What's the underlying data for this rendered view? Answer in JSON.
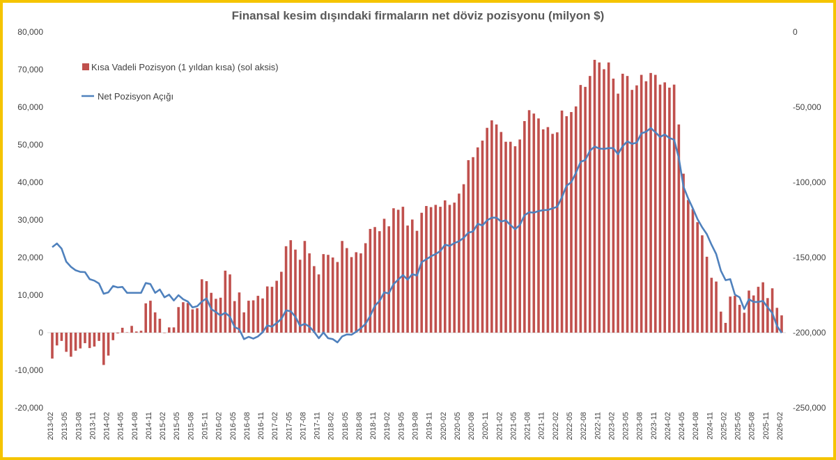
{
  "chart_data": {
    "type": "bar+line",
    "title": "Finansal kesim dışındaki firmaların net döviz pozisyonu (milyon $)",
    "start_month": "2013-02",
    "end_month": "2026-02",
    "frequency": "monthly",
    "left_axis": {
      "ylim": [
        -20000,
        80000
      ],
      "ticks": [
        "80,000",
        "70,000",
        "60,000",
        "50,000",
        "40,000",
        "30,000",
        "20,000",
        "10,000",
        "0",
        "-10,000",
        "-20,000"
      ]
    },
    "right_axis": {
      "ylim": [
        -250000,
        0
      ],
      "ticks": [
        "0",
        "-50,000",
        "-100,000",
        "-150,000",
        "-200,000",
        "-250,000"
      ]
    },
    "x_tick_labels": [
      "2013-02",
      "2013-05",
      "2013-08",
      "2013-11",
      "2014-02",
      "2014-05",
      "2014-08",
      "2014-11",
      "2015-02",
      "2015-05",
      "2015-08",
      "2015-11",
      "2016-02",
      "2016-05",
      "2016-08",
      "2016-11",
      "2017-02",
      "2017-05",
      "2017-08",
      "2017-11",
      "2018-02",
      "2018-05",
      "2018-08",
      "2018-11",
      "2019-02",
      "2019-05",
      "2019-08",
      "2019-11",
      "2020-02",
      "2020-05",
      "2020-08",
      "2020-11",
      "2021-02",
      "2021-05",
      "2021-08",
      "2021-11",
      "2022-02",
      "2022-05",
      "2022-08",
      "2022-11",
      "2023-02",
      "2023-05",
      "2023-08",
      "2023-11",
      "2024-02",
      "2024-05",
      "2024-08",
      "2024-11",
      "2025-02",
      "2025-05",
      "2025-08",
      "2025-11",
      "2026-02"
    ],
    "legend_position": "top-left",
    "grid": false,
    "series": [
      {
        "name": "Kısa Vadeli Pozisyon (1 yıldan kısa) (sol aksis)",
        "type": "bar",
        "axis": "left",
        "color": "#C0504D",
        "values": [
          -6900,
          -3400,
          -2200,
          -5100,
          -6400,
          -4800,
          -4200,
          -2800,
          -4100,
          -3700,
          -2200,
          -8600,
          -6100,
          -2000,
          -200,
          1300,
          100,
          1800,
          300,
          500,
          7800,
          8500,
          5400,
          3700,
          -100,
          1400,
          1400,
          6800,
          8100,
          7900,
          6200,
          6500,
          14200,
          13700,
          10600,
          9000,
          9300,
          16500,
          15500,
          8400,
          10700,
          5400,
          8500,
          8600,
          9800,
          9100,
          12300,
          12200,
          13800,
          16200,
          23000,
          24600,
          22100,
          19400,
          24400,
          21100,
          17700,
          15500,
          20900,
          20700,
          20000,
          18800,
          24400,
          22500,
          20100,
          21400,
          21100,
          23800,
          27600,
          28100,
          27000,
          30300,
          28300,
          33100,
          32700,
          33500,
          28500,
          30100,
          27100,
          31900,
          33700,
          33400,
          34000,
          33500,
          35200,
          34000,
          34600,
          37000,
          39500,
          45900,
          46700,
          49300,
          51100,
          54500,
          56500,
          55400,
          53400,
          50800,
          50800,
          49600,
          51400,
          56300,
          59200,
          58300,
          57000,
          54100,
          54700,
          52900,
          53300,
          59100,
          57600,
          58700,
          60200,
          65900,
          65400,
          68300,
          72600,
          71900,
          70100,
          71900,
          67600,
          63600,
          68900,
          68300,
          64600,
          65800,
          68600,
          66900,
          69100,
          68600,
          66000,
          66600,
          65200,
          66000,
          55400,
          42300,
          35300,
          32900,
          29400,
          25900,
          20200,
          14600,
          13600,
          5600,
          2600,
          9600,
          9800,
          7400,
          5300,
          11200,
          9900,
          12200,
          13400,
          9200,
          11800,
          6600,
          4600
        ]
      },
      {
        "name": "Net Pozisyon Açığı",
        "type": "line",
        "axis": "right",
        "color": "#4F81BD",
        "values": [
          -143100,
          -140700,
          -144100,
          -152800,
          -156200,
          -158500,
          -159600,
          -159700,
          -164400,
          -165400,
          -167300,
          -174100,
          -173200,
          -169000,
          -169900,
          -169600,
          -173500,
          -173500,
          -173500,
          -173500,
          -167000,
          -167700,
          -173500,
          -171300,
          -176500,
          -174700,
          -178600,
          -175100,
          -177800,
          -179300,
          -183200,
          -182400,
          -179300,
          -177200,
          -184300,
          -186300,
          -188600,
          -186700,
          -189400,
          -196300,
          -197800,
          -204300,
          -202800,
          -204000,
          -202500,
          -199700,
          -195200,
          -196000,
          -193500,
          -190900,
          -185200,
          -185800,
          -189400,
          -195500,
          -194100,
          -196000,
          -199400,
          -203700,
          -199900,
          -203700,
          -204300,
          -206500,
          -202500,
          -201200,
          -201400,
          -199400,
          -197100,
          -194100,
          -188900,
          -182100,
          -179000,
          -173200,
          -173900,
          -167700,
          -164700,
          -161700,
          -164700,
          -161100,
          -162000,
          -153100,
          -151200,
          -149200,
          -147700,
          -145700,
          -141500,
          -142300,
          -140400,
          -139200,
          -136900,
          -133500,
          -132700,
          -127600,
          -128700,
          -125300,
          -123500,
          -123500,
          -126100,
          -125300,
          -128400,
          -131200,
          -128400,
          -121900,
          -119900,
          -120200,
          -119100,
          -118500,
          -118400,
          -117300,
          -116300,
          -109900,
          -102200,
          -99900,
          -93700,
          -86400,
          -85200,
          -79000,
          -76200,
          -77500,
          -77800,
          -77200,
          -77200,
          -81300,
          -75900,
          -72800,
          -74400,
          -73600,
          -67400,
          -66400,
          -63900,
          -66700,
          -69800,
          -68200,
          -70500,
          -71600,
          -83600,
          -102900,
          -110700,
          -117300,
          -124500,
          -129900,
          -134500,
          -141500,
          -147700,
          -158900,
          -165100,
          -164400,
          -174700,
          -176500,
          -184300,
          -177800,
          -179600,
          -179600,
          -178900,
          -183200,
          -187000,
          -195500,
          -200200
        ]
      }
    ]
  }
}
